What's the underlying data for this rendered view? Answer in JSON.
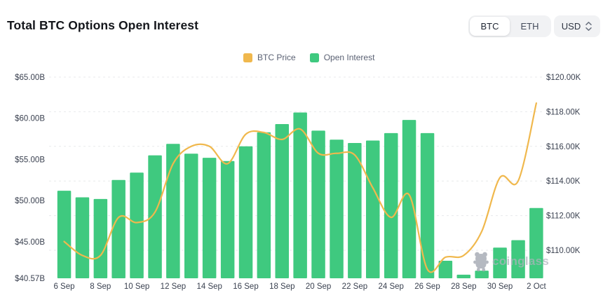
{
  "header": {
    "title": "Total BTC Options Open Interest",
    "coin_toggle": {
      "options": [
        "BTC",
        "ETH"
      ],
      "selected": "BTC"
    },
    "currency_select": {
      "value": "USD"
    }
  },
  "legend": {
    "items": [
      {
        "label": "BTC Price",
        "color": "#f0b84d"
      },
      {
        "label": "Open Interest",
        "color": "#3fc97f"
      }
    ]
  },
  "watermark": {
    "brand": "coinglass"
  },
  "chart_data": {
    "type": "combo_bar_line",
    "title": "Total BTC Options Open Interest",
    "categories": [
      "6 Sep",
      "7 Sep",
      "8 Sep",
      "9 Sep",
      "10 Sep",
      "11 Sep",
      "12 Sep",
      "13 Sep",
      "14 Sep",
      "15 Sep",
      "16 Sep",
      "17 Sep",
      "18 Sep",
      "19 Sep",
      "20 Sep",
      "21 Sep",
      "22 Sep",
      "23 Sep",
      "24 Sep",
      "25 Sep",
      "26 Sep",
      "27 Sep",
      "28 Sep",
      "29 Sep",
      "30 Sep",
      "1 Oct",
      "2 Oct"
    ],
    "series": [
      {
        "name": "Open Interest",
        "type": "bar",
        "y_axis": "left",
        "unit": "USD billions",
        "color": "#3fc97f",
        "values": [
          51.2,
          50.4,
          50.2,
          52.5,
          53.4,
          55.5,
          56.9,
          55.7,
          55.2,
          54.8,
          56.6,
          58.3,
          59.3,
          60.7,
          58.5,
          57.4,
          57.0,
          57.3,
          58.2,
          59.8,
          58.2,
          42.7,
          41.0,
          41.5,
          44.3,
          45.2,
          49.1
        ]
      },
      {
        "name": "BTC Price",
        "type": "line",
        "y_axis": "right",
        "unit": "USD thousands",
        "color": "#f0b84d",
        "values": [
          110.5,
          109.7,
          109.7,
          111.9,
          111.6,
          112.2,
          115.0,
          116.0,
          116.0,
          115.0,
          116.7,
          116.8,
          116.4,
          117.0,
          115.6,
          115.6,
          115.5,
          113.6,
          111.9,
          113.2,
          108.9,
          109.6,
          109.7,
          111.1,
          114.2,
          114.0,
          118.5
        ]
      }
    ],
    "left_axis": {
      "min": 40.57,
      "max": 65,
      "tick_labels": [
        "$65.00B",
        "$60.00B",
        "$55.00B",
        "$50.00B",
        "$45.00B",
        "$40.57B"
      ],
      "tick_values": [
        65,
        60,
        55,
        50,
        45,
        40.57
      ]
    },
    "right_axis": {
      "max": 120,
      "tick_labels": [
        "$120.00K",
        "$118.00K",
        "$116.00K",
        "$114.00K",
        "$112.00K",
        "$110.00K"
      ],
      "tick_values": [
        120,
        118,
        116,
        114,
        112,
        110
      ]
    },
    "x_axis": {
      "tick_labels": [
        "6 Sep",
        "8 Sep",
        "10 Sep",
        "12 Sep",
        "14 Sep",
        "16 Sep",
        "18 Sep",
        "20 Sep",
        "22 Sep",
        "24 Sep",
        "26 Sep",
        "28 Sep",
        "30 Sep",
        "2 Oct"
      ],
      "tick_every": 2
    },
    "grid": {
      "style": "dashed",
      "color": "#e8eaec",
      "aligned_to": "right_axis"
    },
    "legend_position": "top-center"
  }
}
